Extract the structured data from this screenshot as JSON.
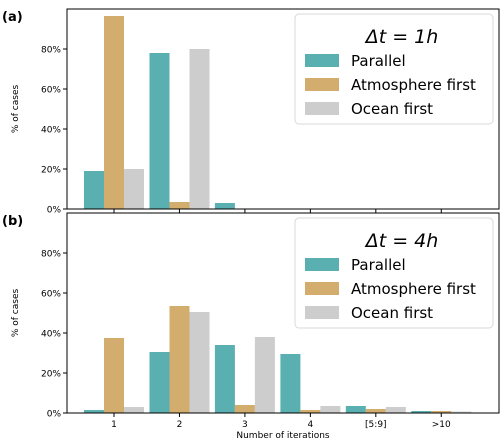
{
  "colors": {
    "parallel": "#5aafb1",
    "atmosphere_first": "#d2ad6d",
    "ocean_first": "#cdcdcd",
    "axis": "#000000"
  },
  "xlabel": "Number of iterations",
  "chart_data": [
    {
      "type": "bar",
      "panel_label": "(a)",
      "legend_title": "Δt = 1h",
      "legend_position": "top-right",
      "ylabel": "% of cases",
      "ylim": [
        0,
        100
      ],
      "yticks": [
        0,
        20,
        40,
        60,
        80
      ],
      "ytick_labels": [
        "0%",
        "20%",
        "40%",
        "60%",
        "80%"
      ],
      "categories": [
        "1",
        "2",
        "3",
        "4",
        "[5:9]",
        ">10"
      ],
      "show_category_labels": false,
      "series": [
        {
          "name": "Parallel",
          "values": [
            19,
            78,
            3,
            0,
            0,
            0
          ]
        },
        {
          "name": "Atmosphere first",
          "values": [
            96.5,
            3.5,
            0,
            0,
            0,
            0
          ]
        },
        {
          "name": "Ocean first",
          "values": [
            20,
            80,
            0,
            0,
            0,
            0
          ]
        }
      ]
    },
    {
      "type": "bar",
      "panel_label": "(b)",
      "legend_title": "Δt = 4h",
      "legend_position": "top-right",
      "ylabel": "% of cases",
      "ylim": [
        0,
        100
      ],
      "yticks": [
        0,
        20,
        40,
        60,
        80
      ],
      "ytick_labels": [
        "0%",
        "20%",
        "40%",
        "60%",
        "80%"
      ],
      "categories": [
        "1",
        "2",
        "3",
        "4",
        "[5:9]",
        ">10"
      ],
      "show_category_labels": true,
      "series": [
        {
          "name": "Parallel",
          "values": [
            1.5,
            30.5,
            34,
            29.5,
            3.5,
            1
          ]
        },
        {
          "name": "Atmosphere first",
          "values": [
            37.5,
            53.5,
            4,
            1.5,
            2,
            1
          ]
        },
        {
          "name": "Ocean first",
          "values": [
            3,
            50.5,
            38,
            3.5,
            3,
            0.7
          ]
        }
      ]
    }
  ]
}
